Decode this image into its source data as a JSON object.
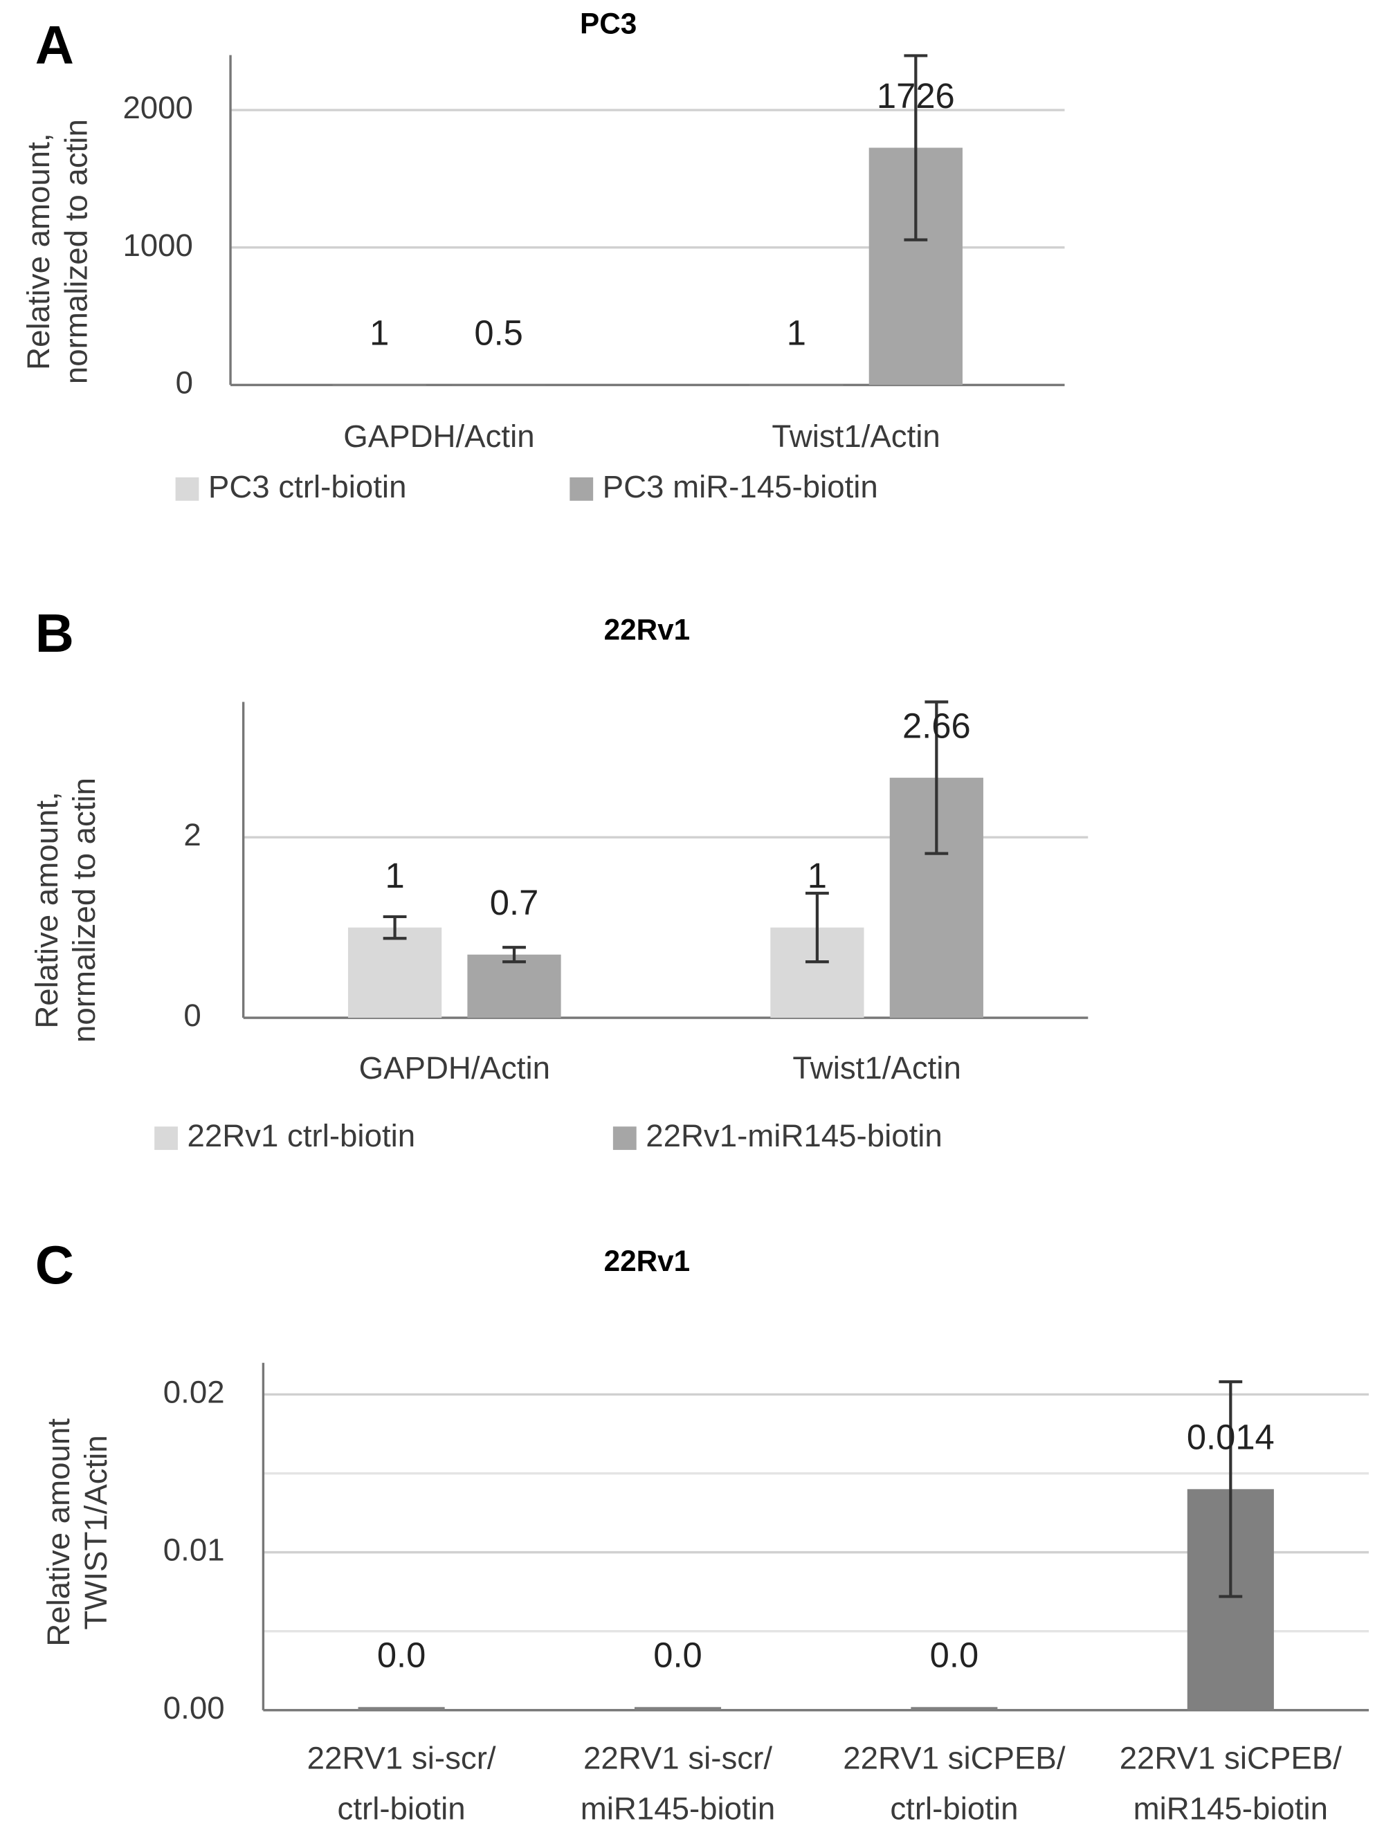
{
  "chart_data": [
    {
      "type": "bar",
      "panel": "A",
      "title": "PC3",
      "ylabel": [
        "Relative amount,",
        "normalized to actin"
      ],
      "categories": [
        [
          "GAPDH/Actin"
        ],
        [
          "Twist1/Actin"
        ]
      ],
      "series": [
        {
          "name": "PC3 ctrl-biotin",
          "color": "#d9d9d9",
          "values": [
            1,
            1
          ],
          "value_labels": [
            "1",
            "1"
          ]
        },
        {
          "name": "PC3 miR-145-biotin",
          "color": "#a6a6a6",
          "values": [
            0.5,
            1726
          ],
          "value_labels": [
            "0.5",
            "1726"
          ],
          "errors": [
            null,
            670
          ]
        }
      ],
      "ylim": [
        0,
        2400
      ],
      "yticks": [
        0,
        1000,
        2000
      ],
      "grid": true,
      "legend": "bottom"
    },
    {
      "type": "bar",
      "panel": "B",
      "title": "22Rv1",
      "ylabel": [
        "Relative amount,",
        "normalized to actin"
      ],
      "categories": [
        [
          "GAPDH/Actin"
        ],
        [
          "Twist1/Actin"
        ]
      ],
      "series": [
        {
          "name": "22Rv1 ctrl-biotin",
          "color": "#d9d9d9",
          "values": [
            1,
            1
          ],
          "value_labels": [
            "1",
            "1"
          ],
          "errors": [
            0.12,
            0.38
          ]
        },
        {
          "name": "22Rv1-miR145-biotin",
          "color": "#a6a6a6",
          "values": [
            0.7,
            2.66
          ],
          "value_labels": [
            "0.7",
            "2.66"
          ],
          "errors": [
            0.08,
            0.84
          ]
        }
      ],
      "ylim": [
        0,
        3.5
      ],
      "yticks": [
        0,
        2
      ],
      "grid": true,
      "legend": "bottom"
    },
    {
      "type": "bar",
      "panel": "C",
      "title": "22Rv1",
      "ylabel": [
        "Relative amount",
        "TWIST1/Actin"
      ],
      "categories": [
        [
          "22RV1 si-scr/",
          "ctrl-biotin"
        ],
        [
          "22RV1 si-scr/",
          "miR145-biotin"
        ],
        [
          "22RV1 siCPEB/",
          "ctrl-biotin"
        ],
        [
          "22RV1 siCPEB/",
          "miR145-biotin"
        ]
      ],
      "series": [
        {
          "color": "#808080",
          "values": [
            0.0002,
            0.0002,
            0.0002,
            0.014
          ],
          "value_labels": [
            "0.0",
            "0.0",
            "0.0",
            "0.014"
          ],
          "errors": [
            null,
            null,
            null,
            0.0068
          ]
        }
      ],
      "ylim": [
        0,
        0.022
      ],
      "yticks": [
        {
          "value": 0,
          "label": "0.00"
        },
        0.01,
        0.02
      ],
      "minor_yticks": [
        0.005,
        0.015
      ],
      "grid": true
    }
  ]
}
